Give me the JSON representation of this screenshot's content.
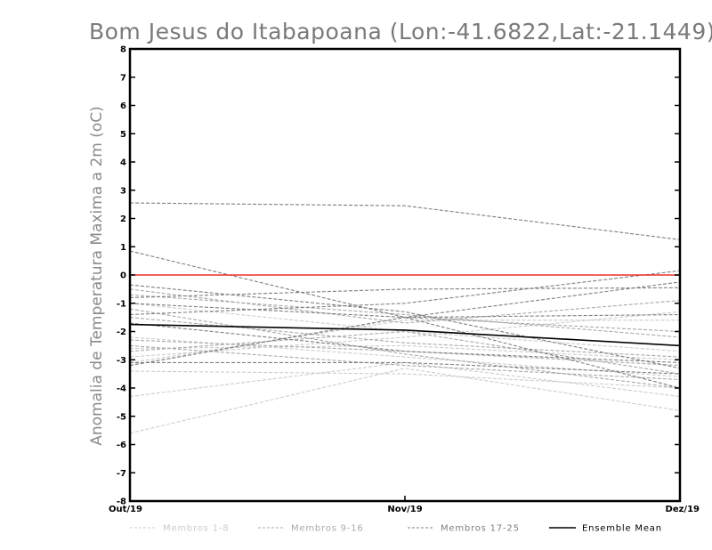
{
  "chart_data": {
    "type": "line",
    "title": "Bom Jesus do Itabapoana (Lon:-41.6822,Lat:-21.1449)",
    "ylabel": "Anomalia de Temperatura Maxima a 2m (oC)",
    "xlabel": "",
    "categories": [
      "Out/19",
      "Nov/19",
      "Dez/19"
    ],
    "ylim": [
      -8,
      8
    ],
    "yticks": [
      "8",
      "7",
      "6",
      "5",
      "4",
      "3",
      "2",
      "1",
      "0",
      "-1",
      "-2",
      "-3",
      "-4",
      "-5",
      "-6",
      "-7",
      "-8"
    ],
    "zero_line_color": "#e8302a",
    "group_colors": {
      "Membros 1-8": "#cccccc",
      "Membros 9-16": "#a9a9a9",
      "Membros 17-25": "#7f7f7f",
      "Ensemble Mean": "#000000"
    },
    "series": [
      {
        "group": "Membros 1-8",
        "values": [
          -5.6,
          -3.3,
          -4.8
        ]
      },
      {
        "group": "Membros 1-8",
        "values": [
          -4.3,
          -3.1,
          -4.3
        ]
      },
      {
        "group": "Membros 1-8",
        "values": [
          -3.4,
          -3.5,
          -4.0
        ]
      },
      {
        "group": "Membros 1-8",
        "values": [
          -2.2,
          -2.9,
          -3.6
        ]
      },
      {
        "group": "Membros 1-8",
        "values": [
          -2.6,
          -2.5,
          -3.0
        ]
      },
      {
        "group": "Membros 1-8",
        "values": [
          -1.0,
          -2.0,
          -2.7
        ]
      },
      {
        "group": "Membros 1-8",
        "values": [
          -2.9,
          -2.2,
          -1.3
        ]
      },
      {
        "group": "Membros 1-8",
        "values": [
          -3.1,
          -1.6,
          -1.6
        ]
      },
      {
        "group": "Membros 9-16",
        "values": [
          -0.7,
          -1.4,
          -2.2
        ]
      },
      {
        "group": "Membros 9-16",
        "values": [
          -1.5,
          -2.4,
          -2.9
        ]
      },
      {
        "group": "Membros 9-16",
        "values": [
          -2.3,
          -2.7,
          -3.2
        ]
      },
      {
        "group": "Membros 9-16",
        "values": [
          -3.2,
          -1.5,
          -2.0
        ]
      },
      {
        "group": "Membros 9-16",
        "values": [
          -2.7,
          -2.0,
          -3.5
        ]
      },
      {
        "group": "Membros 9-16",
        "values": [
          -1.2,
          -2.8,
          -4.0
        ]
      },
      {
        "group": "Membros 9-16",
        "values": [
          -2.5,
          -3.2,
          -3.7
        ]
      },
      {
        "group": "Membros 9-16",
        "values": [
          -0.5,
          -1.7,
          -0.9
        ]
      },
      {
        "group": "Membros 17-25",
        "values": [
          2.55,
          2.45,
          1.25
        ]
      },
      {
        "group": "Membros 17-25",
        "values": [
          0.85,
          -1.5,
          -4.0
        ]
      },
      {
        "group": "Membros 17-25",
        "values": [
          -0.35,
          -1.3,
          -3.3
        ]
      },
      {
        "group": "Membros 17-25",
        "values": [
          -0.8,
          -0.5,
          -0.45
        ]
      },
      {
        "group": "Membros 17-25",
        "values": [
          -1.4,
          -1.0,
          0.15
        ]
      },
      {
        "group": "Membros 17-25",
        "values": [
          -3.2,
          -1.5,
          -0.25
        ]
      },
      {
        "group": "Membros 17-25",
        "values": [
          -3.1,
          -3.1,
          -3.5
        ]
      },
      {
        "group": "Membros 17-25",
        "values": [
          -1.0,
          -1.5,
          -1.4
        ]
      },
      {
        "group": "Membros 17-25",
        "values": [
          -1.7,
          -2.7,
          -3.1
        ]
      },
      {
        "group": "Ensemble Mean",
        "values": [
          -1.75,
          -1.95,
          -2.5
        ]
      }
    ],
    "legend": [
      {
        "label": "Membros 1-8",
        "color": "#cccccc",
        "dash": true
      },
      {
        "label": "Membros 9-16",
        "color": "#a9a9a9",
        "dash": true
      },
      {
        "label": "Membros 17-25",
        "color": "#7f7f7f",
        "dash": true
      },
      {
        "label": "Ensemble Mean",
        "color": "#000000",
        "dash": false
      }
    ],
    "legend_position": "bottom",
    "grid": false
  }
}
